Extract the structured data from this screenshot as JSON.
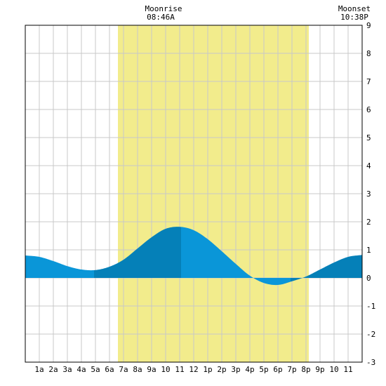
{
  "chart_data": {
    "type": "area",
    "title": "",
    "xlabel": "",
    "ylabel": "",
    "x_range": [
      0,
      24
    ],
    "ylim": [
      -3,
      9
    ],
    "y_ticks": [
      -3,
      -2,
      -1,
      0,
      1,
      2,
      3,
      4,
      5,
      6,
      7,
      8,
      9
    ],
    "x_tick_labels": [
      "1a",
      "2a",
      "3a",
      "4a",
      "5a",
      "6a",
      "7a",
      "8a",
      "9a",
      "10",
      "11",
      "12",
      "1p",
      "2p",
      "3p",
      "4p",
      "5p",
      "6p",
      "7p",
      "8p",
      "9p",
      "10",
      "11"
    ],
    "grid": true,
    "daylight": {
      "start": 6.6,
      "end": 20.2,
      "color": "#f2ec8c"
    },
    "moonrise": {
      "label": "Moonrise",
      "time": "08:46A"
    },
    "moonset": {
      "label": "Moonset",
      "time": "10:38P"
    },
    "series": [
      {
        "x": [
          0,
          1,
          2,
          3,
          4,
          5,
          6,
          7,
          8,
          9,
          10,
          11,
          12,
          13,
          14,
          15,
          16,
          17,
          18,
          19,
          20,
          21,
          22,
          23,
          24
        ],
        "values": [
          0.8,
          0.75,
          0.6,
          0.42,
          0.3,
          0.28,
          0.4,
          0.65,
          1.05,
          1.45,
          1.75,
          1.82,
          1.7,
          1.38,
          0.95,
          0.5,
          0.08,
          -0.18,
          -0.25,
          -0.12,
          0.05,
          0.3,
          0.55,
          0.75,
          0.82
        ]
      }
    ],
    "high_tides": [
      0,
      11.1,
      24
    ],
    "low_tides": [
      4.9,
      18.9
    ],
    "colors": {
      "fill_light": "#0a96d8",
      "fill_dark": "#0580b8",
      "grid": "#c8c8c8",
      "border": "#000000"
    }
  }
}
